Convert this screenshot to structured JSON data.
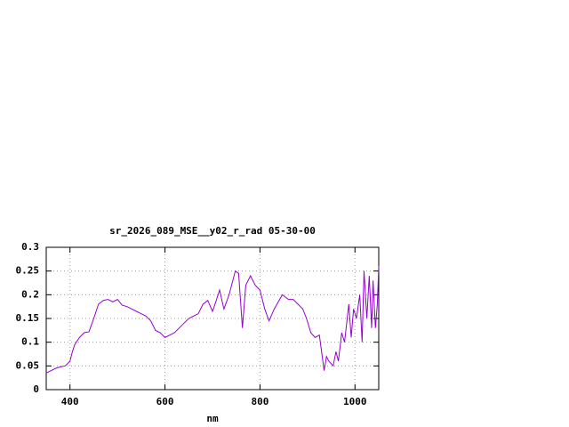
{
  "chart_data": {
    "type": "line",
    "title": "sr_2026_089_MSE__y02_r_rad 05-30-00",
    "x_label": "nm",
    "color": "#9400d3",
    "grid": true,
    "xlim": [
      350,
      1050
    ],
    "xticks": [
      400,
      600,
      800,
      1000
    ],
    "ylim": [
      0,
      0.3
    ],
    "yticks": [
      0,
      0.05,
      0.1,
      0.15,
      0.2,
      0.25,
      0.3
    ],
    "x": [
      350,
      360,
      370,
      380,
      390,
      400,
      405,
      410,
      420,
      430,
      440,
      450,
      460,
      470,
      480,
      490,
      500,
      510,
      520,
      530,
      540,
      550,
      560,
      570,
      580,
      590,
      600,
      610,
      620,
      630,
      640,
      650,
      660,
      670,
      680,
      690,
      700,
      707,
      715,
      724,
      735,
      748,
      755,
      763,
      770,
      780,
      790,
      800,
      810,
      819,
      830,
      847,
      860,
      870,
      880,
      890,
      898,
      907,
      916,
      925,
      935,
      940,
      945,
      954,
      960,
      965,
      972,
      978,
      987,
      992,
      997,
      1003,
      1010,
      1015,
      1019,
      1025,
      1030,
      1035,
      1038,
      1043,
      1047,
      1050
    ],
    "values": [
      0.035,
      0.04,
      0.045,
      0.048,
      0.05,
      0.06,
      0.08,
      0.095,
      0.11,
      0.12,
      0.122,
      0.15,
      0.18,
      0.188,
      0.19,
      0.185,
      0.19,
      0.178,
      0.175,
      0.17,
      0.165,
      0.16,
      0.155,
      0.145,
      0.125,
      0.12,
      0.11,
      0.115,
      0.12,
      0.13,
      0.14,
      0.15,
      0.155,
      0.16,
      0.18,
      0.188,
      0.165,
      0.185,
      0.21,
      0.17,
      0.2,
      0.25,
      0.245,
      0.13,
      0.22,
      0.24,
      0.22,
      0.21,
      0.17,
      0.145,
      0.17,
      0.2,
      0.19,
      0.19,
      0.18,
      0.17,
      0.15,
      0.12,
      0.11,
      0.115,
      0.04,
      0.07,
      0.06,
      0.05,
      0.08,
      0.06,
      0.12,
      0.1,
      0.18,
      0.11,
      0.17,
      0.15,
      0.2,
      0.1,
      0.25,
      0.15,
      0.24,
      0.13,
      0.23,
      0.13,
      0.18,
      0.26
    ]
  }
}
